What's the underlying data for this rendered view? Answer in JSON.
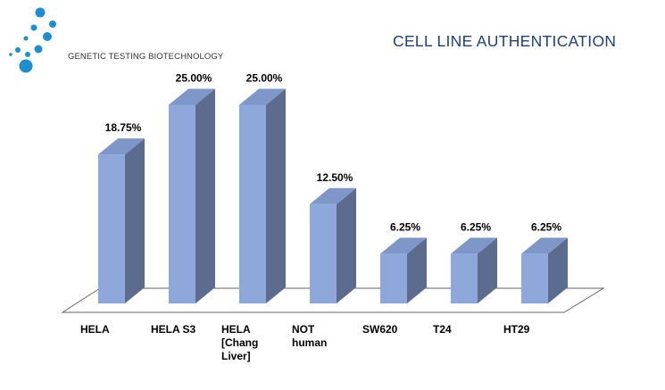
{
  "header": {
    "company": "GENETIC TESTING BIOTECHNOLOGY",
    "title": "CELL LINE AUTHENTICATION"
  },
  "colors": {
    "bar_front": "#8ea8dc",
    "bar_side": "#5b6c8f",
    "bar_top": "#7e96c8",
    "floor": "#ffffff",
    "floor_edge": "#666666",
    "logo": "#1d8fd0",
    "title": "#1f3f7a"
  },
  "chart_data": {
    "type": "bar",
    "title": "",
    "xlabel": "",
    "ylabel": "",
    "ylim": [
      0,
      30
    ],
    "grid": false,
    "legend": "none",
    "categories": [
      [
        "HELA"
      ],
      [
        "HELA  S3"
      ],
      [
        "HELA",
        "[Chang",
        "Liver]"
      ],
      [
        "NOT",
        "human"
      ],
      [
        "SW620"
      ],
      [
        "T24"
      ],
      [
        "HT29"
      ]
    ],
    "values": [
      18.75,
      25.0,
      25.0,
      12.5,
      6.25,
      6.25,
      6.25
    ],
    "labels": [
      "18.75%",
      "25.00%",
      "25.00%",
      "12.50%",
      "6.25%",
      "6.25%",
      "6.25%"
    ]
  }
}
